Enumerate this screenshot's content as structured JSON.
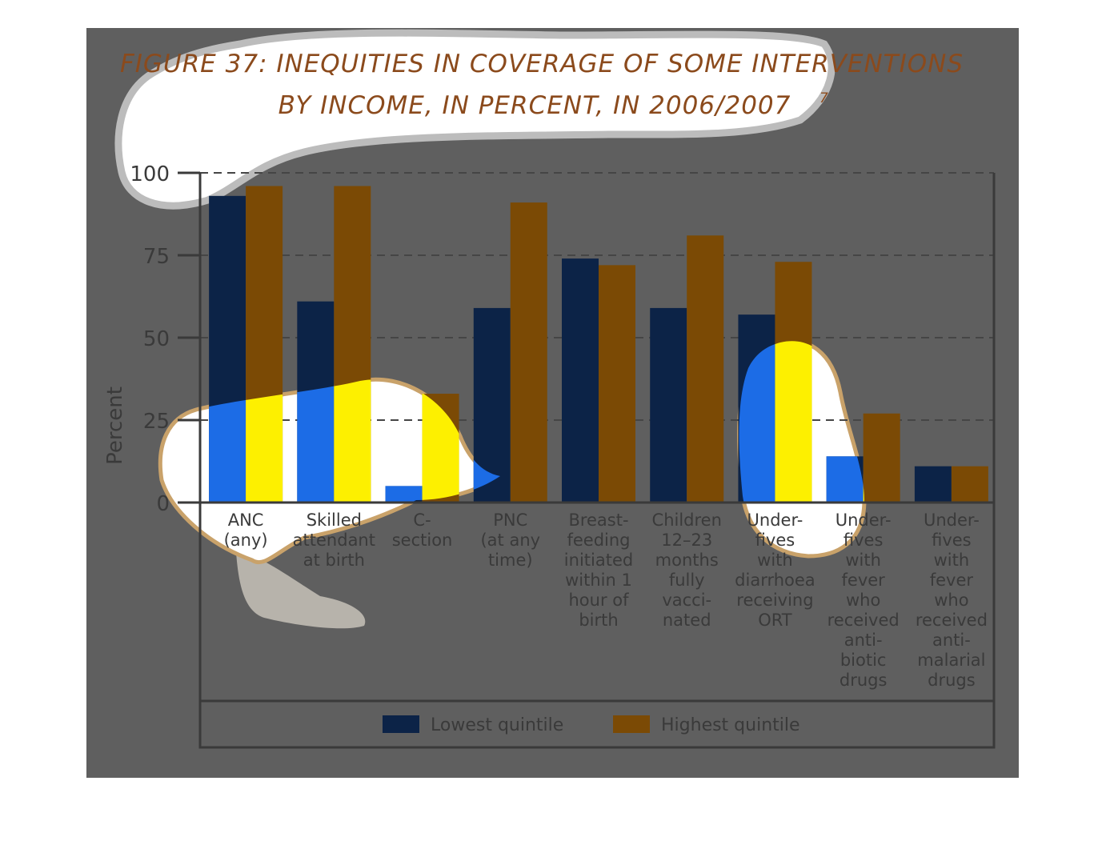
{
  "colors": {
    "background_panel": "#5f5f5f",
    "title": "#8b4a1c",
    "axis_text": "#3a3a3a",
    "grid": "#454545",
    "lowest": "#0c2347",
    "highest": "#7b4a05",
    "highlight_white": "#ffffff",
    "highlight_yellow": "#fdf000",
    "highlight_blue": "#1c6ce6",
    "highlight_grey": "#b7b3ab"
  },
  "chart_data": {
    "type": "bar",
    "title": "FIGURE 37: INEQUITIES IN COVERAGE OF SOME INTERVENTIONS",
    "title_line2": "BY INCOME, IN PERCENT, IN 2006/2007",
    "title_note": "7",
    "xlabel": "",
    "ylabel": "Percent",
    "ylim": [
      0,
      100
    ],
    "yticks": [
      "0",
      "25",
      "50",
      "75",
      "100"
    ],
    "grid": "horizontal dashed",
    "legend_position": "bottom",
    "categories": [
      [
        "ANC",
        "(any)"
      ],
      [
        "Skilled",
        "attendant",
        "at birth"
      ],
      [
        "C-",
        "section"
      ],
      [
        "PNC",
        "(at any",
        "time)"
      ],
      [
        "Breast-",
        "feeding",
        "initiated",
        "within 1",
        "hour of",
        "birth"
      ],
      [
        "Children",
        "12–23",
        "months",
        "fully",
        "vacci-",
        "nated"
      ],
      [
        "Under-",
        "fives",
        "with",
        "diarrhoea",
        "receiving",
        "ORT"
      ],
      [
        "Under-",
        "fives",
        "with",
        "fever",
        "who",
        "received",
        "anti-",
        "biotic",
        "drugs"
      ],
      [
        "Under-",
        "fives",
        "with",
        "fever",
        "who",
        "received",
        "anti-",
        "malarial",
        "drugs"
      ]
    ],
    "series": [
      {
        "name": "Lowest quintile",
        "values": [
          93,
          61,
          5,
          59,
          74,
          59,
          57,
          14,
          11
        ]
      },
      {
        "name": "Highest quintile",
        "values": [
          96,
          96,
          33,
          91,
          72,
          81,
          73,
          27,
          11
        ]
      }
    ]
  }
}
